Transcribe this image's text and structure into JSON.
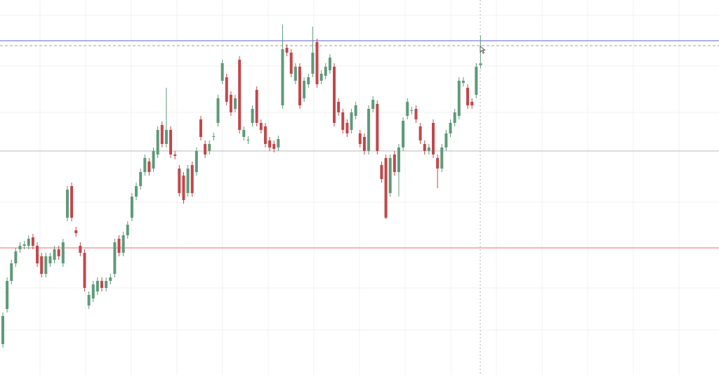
{
  "chart_data": {
    "type": "candlestick",
    "up_color": "#5e9a7a",
    "down_color": "#c2474b",
    "ylim": [
      0,
      534
    ],
    "open": [
      44,
      94,
      134,
      159,
      179,
      184,
      184,
      196,
      184,
      169,
      144,
      159,
      164,
      179,
      159,
      224,
      269,
      206,
      184,
      174,
      99,
      109,
      119,
      134,
      124,
      134,
      144,
      194,
      174,
      199,
      224,
      254,
      269,
      289,
      304,
      294,
      314,
      356,
      329,
      349,
      314,
      294,
      284,
      259,
      299,
      289,
      364,
      329,
      319,
      339,
      359,
      419,
      424,
      399,
      379,
      449,
      339,
      334,
      359,
      406,
      359,
      354,
      334,
      329,
      324,
      384,
      466,
      459,
      419,
      439,
      394,
      414,
      429,
      474,
      419,
      426,
      434,
      439,
      389,
      374,
      359,
      349,
      369,
      344,
      339,
      319,
      379,
      386,
      299,
      309,
      259,
      314,
      289,
      324,
      369,
      376,
      379,
      354,
      329,
      319,
      359,
      309,
      294,
      324,
      344,
      359,
      369,
      416,
      409,
      389,
      399,
      441
    ],
    "high": [
      89,
      139,
      164,
      181,
      189,
      191,
      199,
      201,
      189,
      174,
      174,
      174,
      184,
      184,
      194,
      269,
      274,
      211,
      189,
      179,
      119,
      134,
      139,
      139,
      139,
      144,
      194,
      199,
      204,
      219,
      259,
      274,
      294,
      314,
      309,
      324,
      354,
      361,
      409,
      354,
      319,
      299,
      289,
      299,
      304,
      324,
      369,
      334,
      334,
      345,
      399,
      449,
      429,
      404,
      399,
      454,
      354,
      340,
      384,
      411,
      364,
      359,
      339,
      334,
      341,
      499,
      471,
      464,
      444,
      444,
      424,
      429,
      496,
      479,
      434,
      444,
      457,
      444,
      394,
      379,
      364,
      379,
      389,
      349,
      344,
      384,
      397,
      391,
      304,
      314,
      314,
      319,
      329,
      367,
      394,
      382,
      384,
      359,
      334,
      329,
      364,
      314,
      329,
      349,
      364,
      379,
      424,
      424,
      414,
      394,
      444,
      484
    ],
    "low": [
      39,
      89,
      129,
      154,
      174,
      179,
      179,
      179,
      154,
      139,
      139,
      154,
      159,
      164,
      154,
      219,
      219,
      197,
      169,
      119,
      94,
      104,
      114,
      119,
      119,
      129,
      139,
      169,
      169,
      194,
      219,
      249,
      264,
      284,
      284,
      289,
      309,
      324,
      324,
      309,
      307,
      254,
      244,
      254,
      254,
      284,
      334,
      309,
      314,
      334,
      354,
      414,
      384,
      369,
      374,
      344,
      334,
      329,
      354,
      354,
      344,
      324,
      319,
      317,
      319,
      379,
      454,
      424,
      414,
      379,
      389,
      409,
      424,
      409,
      414,
      421,
      429,
      354,
      369,
      344,
      339,
      344,
      364,
      324,
      314,
      314,
      374,
      314,
      274,
      222,
      254,
      284,
      254,
      319,
      364,
      371,
      359,
      329,
      314,
      314,
      309,
      266,
      289,
      319,
      339,
      354,
      364,
      411,
      379,
      379,
      394,
      436
    ],
    "close": [
      84,
      134,
      159,
      176,
      184,
      186,
      194,
      184,
      159,
      144,
      169,
      169,
      179,
      169,
      189,
      264,
      224,
      202,
      174,
      124,
      114,
      129,
      134,
      124,
      134,
      139,
      189,
      174,
      199,
      214,
      254,
      269,
      289,
      309,
      289,
      319,
      349,
      329,
      349,
      314,
      312,
      259,
      249,
      294,
      259,
      319,
      339,
      314,
      329,
      340,
      394,
      444,
      389,
      374,
      394,
      349,
      349,
      335,
      379,
      359,
      349,
      329,
      324,
      322,
      336,
      464,
      459,
      429,
      439,
      384,
      419,
      424,
      459,
      414,
      429,
      439,
      452,
      359,
      374,
      349,
      344,
      374,
      384,
      329,
      319,
      379,
      392,
      319,
      279,
      224,
      309,
      289,
      324,
      362,
      389,
      377,
      364,
      334,
      319,
      324,
      314,
      294,
      324,
      344,
      359,
      374,
      419,
      419,
      384,
      384,
      439,
      444
    ],
    "levels": [
      {
        "value": 476,
        "color": "#7f7fd4"
      },
      {
        "value": 469,
        "color": "#b5b5b5",
        "dashed": true
      },
      {
        "value": 319,
        "color": "#c8c8c8"
      },
      {
        "value": 181,
        "color": "#f08a8a"
      }
    ]
  }
}
